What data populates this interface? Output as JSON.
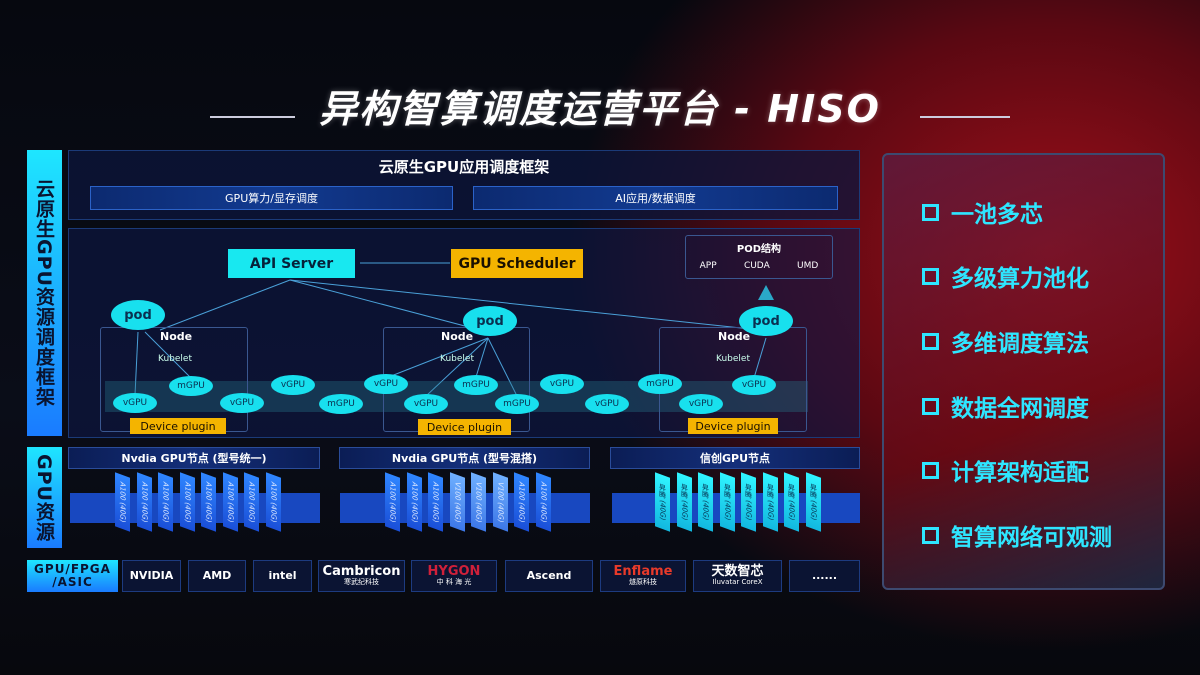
{
  "title": "异构智算调度运营平台 - HISO",
  "left_labels": {
    "framework": "云原生GPU资源调度框架",
    "resources": "GPU资源",
    "hardware": "GPU/FPGA /ASIC"
  },
  "top": {
    "title": "云原生GPU应用调度框架",
    "bars": [
      "GPU算力/显存调度",
      "AI应用/数据调度"
    ]
  },
  "k8s": {
    "api_server": "API Server",
    "scheduler": "GPU Scheduler",
    "pod_struct": {
      "title": "POD结构",
      "items": [
        "APP",
        "CUDA",
        "UMD"
      ]
    },
    "pod": "pod",
    "node": "Node",
    "kubelet": "Kubelet",
    "device_plugin": "Device plugin",
    "units": [
      "vGPU",
      "mGPU",
      "vGPU",
      "vGPU",
      "mGPU",
      "vGPU",
      "vGPU",
      "mGPU",
      "mGPU",
      "vGPU",
      "vGPU",
      "mGPU",
      "vGPU",
      "vGPU"
    ]
  },
  "gpu_groups": [
    {
      "title": "Nvdia GPU节点 (型号统一)",
      "chips": [
        "A100 (40G)",
        "A100 (40G)",
        "A100 (40G)",
        "A100 (40G)",
        "A100 (40G)",
        "A100 (40G)",
        "A100 (40G)",
        "A100 (40G)"
      ]
    },
    {
      "title": "Nvdia GPU节点 (型号混搭)",
      "chips": [
        "A100 (40G)",
        "A100 (40G)",
        "A100 (40G)",
        "V100 (40G)",
        "V100 (40G)",
        "V100 (40G)",
        "A100 (40G)",
        "A100 (40G)"
      ]
    },
    {
      "title": "信创GPU节点",
      "chips": [
        "昇腾 (40G)",
        "昇腾 (40G)",
        "昇腾 (40G)",
        "昇腾 (40G)",
        "昇腾 (40G)",
        "昇腾 (40G)",
        "昇腾 (40G)",
        "昇腾 (40G)"
      ]
    }
  ],
  "vendors": [
    {
      "name": "NVIDIA"
    },
    {
      "name": "AMD"
    },
    {
      "name": "intel"
    },
    {
      "name": "Cambricon",
      "sub": "寒武纪科技"
    },
    {
      "name": "HYGON",
      "sub": "中 科 海 光"
    },
    {
      "name": "Ascend"
    },
    {
      "name": "Enflame",
      "sub": "燧原科技"
    },
    {
      "name": "天数智芯",
      "sub": "Iluvatar CoreX"
    },
    {
      "name": "......"
    }
  ],
  "features": [
    "一池多芯",
    "多级算力池化",
    "多维调度算法",
    "数据全网调度",
    "计算架构适配",
    "智算网络可观测"
  ],
  "colors": {
    "cyan": "#18e8f0",
    "yellow": "#f4b400",
    "blue": "#1a4fd8",
    "red": "#a0101a"
  }
}
